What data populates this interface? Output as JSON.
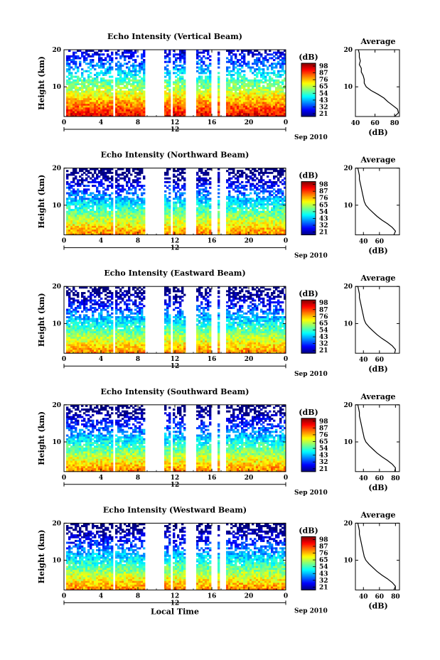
{
  "chart_data": [
    {
      "type": "heatmap",
      "title": "Echo Intensity (Vertical Beam)",
      "ylabel": "Height (km)",
      "ylim": [
        2,
        20
      ],
      "xlim": [
        0,
        24
      ],
      "x_ticks": [
        "0",
        "4",
        "8",
        "12",
        "16",
        "20",
        "0"
      ],
      "y_ticks": [
        "20",
        "10"
      ],
      "date_marker": "12",
      "date_label": "Sep 2010",
      "colorbar": {
        "unit": "(dB)",
        "ticks": [
          "98",
          "87",
          "76",
          "65",
          "54",
          "43",
          "32",
          "21"
        ]
      },
      "data_gaps_hours": [
        [
          0.0,
          0.3
        ],
        [
          5.3,
          5.5
        ],
        [
          8.8,
          10.8
        ],
        [
          11.6,
          11.8
        ],
        [
          13.2,
          14.2
        ],
        [
          15.9,
          16.6
        ],
        [
          16.9,
          17.5
        ]
      ],
      "average_profile": {
        "title": "Average",
        "xlabel": "(dB)",
        "xlim": [
          40,
          85
        ],
        "x_ticks": [
          "40",
          "60",
          "80"
        ],
        "y_ticks": [
          "20",
          "10"
        ],
        "ylim": [
          2,
          20
        ],
        "profile": [
          [
            2,
            80
          ],
          [
            3,
            84
          ],
          [
            4,
            83
          ],
          [
            5,
            78
          ],
          [
            6,
            73
          ],
          [
            7,
            69
          ],
          [
            8,
            63
          ],
          [
            9,
            56
          ],
          [
            10,
            51
          ],
          [
            11,
            49
          ],
          [
            12,
            49
          ],
          [
            13,
            48
          ],
          [
            14,
            46
          ],
          [
            15,
            46
          ],
          [
            16,
            44
          ],
          [
            17,
            45
          ],
          [
            18,
            44
          ],
          [
            19,
            44
          ],
          [
            20,
            43
          ]
        ]
      }
    },
    {
      "type": "heatmap",
      "title": "Echo Intensity (Northward Beam)",
      "ylabel": "Height (km)",
      "ylim": [
        2,
        20
      ],
      "xlim": [
        0,
        24
      ],
      "x_ticks": [
        "0",
        "4",
        "8",
        "12",
        "16",
        "20",
        "0"
      ],
      "y_ticks": [
        "20",
        "10"
      ],
      "date_marker": "12",
      "date_label": "Sep 2010",
      "colorbar": {
        "unit": "(dB)",
        "ticks": [
          "98",
          "87",
          "76",
          "65",
          "54",
          "43",
          "32",
          "21"
        ]
      },
      "data_gaps_hours": [
        [
          0.0,
          0.3
        ],
        [
          5.3,
          5.5
        ],
        [
          8.8,
          10.8
        ],
        [
          11.6,
          11.8
        ],
        [
          13.2,
          14.2
        ],
        [
          15.9,
          16.6
        ],
        [
          16.9,
          17.5
        ]
      ],
      "average_profile": {
        "title": "Average",
        "xlabel": "(dB)",
        "xlim": [
          30,
          85
        ],
        "x_ticks": [
          "40",
          "60"
        ],
        "y_ticks": [
          "20",
          "10"
        ],
        "ylim": [
          2,
          20
        ],
        "profile": [
          [
            2,
            78
          ],
          [
            3,
            80
          ],
          [
            4,
            76
          ],
          [
            5,
            70
          ],
          [
            6,
            63
          ],
          [
            7,
            57
          ],
          [
            8,
            52
          ],
          [
            9,
            47
          ],
          [
            10,
            43
          ],
          [
            11,
            41
          ],
          [
            12,
            40
          ],
          [
            13,
            39
          ],
          [
            14,
            38
          ],
          [
            15,
            37
          ],
          [
            16,
            36
          ],
          [
            17,
            35
          ],
          [
            18,
            35
          ],
          [
            19,
            34
          ],
          [
            20,
            33
          ]
        ]
      }
    },
    {
      "type": "heatmap",
      "title": "Echo Intensity (Eastward Beam)",
      "ylabel": "Height (km)",
      "ylim": [
        2,
        20
      ],
      "xlim": [
        0,
        24
      ],
      "x_ticks": [
        "0",
        "4",
        "8",
        "12",
        "16",
        "20",
        "0"
      ],
      "y_ticks": [
        "20",
        "10"
      ],
      "date_marker": "12",
      "date_label": "Sep 2010",
      "colorbar": {
        "unit": "(dB)",
        "ticks": [
          "98",
          "87",
          "76",
          "65",
          "54",
          "43",
          "32",
          "21"
        ]
      },
      "data_gaps_hours": [
        [
          0.0,
          0.3
        ],
        [
          5.3,
          5.5
        ],
        [
          8.8,
          10.8
        ],
        [
          11.6,
          11.8
        ],
        [
          13.2,
          14.2
        ],
        [
          15.9,
          16.6
        ],
        [
          16.9,
          17.5
        ]
      ],
      "average_profile": {
        "title": "Average",
        "xlabel": "(dB)",
        "xlim": [
          30,
          85
        ],
        "x_ticks": [
          "40",
          "60"
        ],
        "y_ticks": [
          "20",
          "10"
        ],
        "ylim": [
          2,
          20
        ],
        "profile": [
          [
            2,
            79
          ],
          [
            3,
            80
          ],
          [
            4,
            76
          ],
          [
            5,
            70
          ],
          [
            6,
            63
          ],
          [
            7,
            57
          ],
          [
            8,
            52
          ],
          [
            9,
            47
          ],
          [
            10,
            43
          ],
          [
            11,
            41
          ],
          [
            12,
            40
          ],
          [
            13,
            39
          ],
          [
            14,
            38
          ],
          [
            15,
            37
          ],
          [
            16,
            36
          ],
          [
            17,
            35
          ],
          [
            18,
            35
          ],
          [
            19,
            34
          ],
          [
            20,
            33
          ]
        ]
      }
    },
    {
      "type": "heatmap",
      "title": "Echo Intensity (Southward Beam)",
      "ylabel": "Height (km)",
      "ylim": [
        2,
        20
      ],
      "xlim": [
        0,
        24
      ],
      "x_ticks": [
        "0",
        "4",
        "8",
        "12",
        "16",
        "20",
        "0"
      ],
      "y_ticks": [
        "20",
        "10"
      ],
      "date_marker": "12",
      "date_label": "Sep 2010",
      "colorbar": {
        "unit": "(dB)",
        "ticks": [
          "98",
          "87",
          "76",
          "65",
          "54",
          "43",
          "32",
          "21"
        ]
      },
      "data_gaps_hours": [
        [
          0.0,
          0.3
        ],
        [
          5.3,
          5.5
        ],
        [
          8.8,
          10.8
        ],
        [
          11.6,
          11.8
        ],
        [
          13.2,
          14.2
        ],
        [
          15.9,
          16.6
        ],
        [
          16.9,
          17.5
        ]
      ],
      "average_profile": {
        "title": "Average",
        "xlabel": "(dB)",
        "xlim": [
          30,
          85
        ],
        "x_ticks": [
          "40",
          "60",
          "80"
        ],
        "y_ticks": [
          "20",
          "10"
        ],
        "ylim": [
          2,
          20
        ],
        "profile": [
          [
            2,
            79
          ],
          [
            3,
            80
          ],
          [
            4,
            76
          ],
          [
            5,
            70
          ],
          [
            6,
            63
          ],
          [
            7,
            57
          ],
          [
            8,
            52
          ],
          [
            9,
            47
          ],
          [
            10,
            43
          ],
          [
            11,
            41
          ],
          [
            12,
            40
          ],
          [
            13,
            39
          ],
          [
            14,
            38
          ],
          [
            15,
            37
          ],
          [
            16,
            36
          ],
          [
            17,
            35
          ],
          [
            18,
            35
          ],
          [
            19,
            34
          ],
          [
            20,
            33
          ]
        ]
      }
    },
    {
      "type": "heatmap",
      "title": "Echo Intensity (Westward Beam)",
      "ylabel": "Height (km)",
      "xlabel": "Local Time",
      "ylim": [
        2,
        20
      ],
      "xlim": [
        0,
        24
      ],
      "x_ticks": [
        "0",
        "4",
        "8",
        "12",
        "16",
        "20",
        "0"
      ],
      "y_ticks": [
        "20",
        "10"
      ],
      "date_marker": "12",
      "date_label": "Sep 2010",
      "colorbar": {
        "unit": "(dB)",
        "ticks": [
          "98",
          "87",
          "76",
          "65",
          "54",
          "43",
          "32",
          "21"
        ]
      },
      "data_gaps_hours": [
        [
          0.0,
          0.3
        ],
        [
          5.3,
          5.5
        ],
        [
          8.8,
          10.8
        ],
        [
          11.6,
          11.8
        ],
        [
          13.2,
          14.2
        ],
        [
          15.9,
          16.6
        ],
        [
          16.9,
          17.5
        ]
      ],
      "average_profile": {
        "title": "Average",
        "xlabel": "(dB)",
        "xlim": [
          30,
          85
        ],
        "x_ticks": [
          "40",
          "60",
          "80"
        ],
        "y_ticks": [
          "20",
          "10"
        ],
        "ylim": [
          2,
          20
        ],
        "profile": [
          [
            2,
            78
          ],
          [
            3,
            80
          ],
          [
            4,
            76
          ],
          [
            5,
            70
          ],
          [
            6,
            63
          ],
          [
            7,
            57
          ],
          [
            8,
            52
          ],
          [
            9,
            47
          ],
          [
            10,
            43
          ],
          [
            11,
            41
          ],
          [
            12,
            40
          ],
          [
            13,
            39
          ],
          [
            14,
            38
          ],
          [
            15,
            37
          ],
          [
            16,
            36
          ],
          [
            17,
            35
          ],
          [
            18,
            35
          ],
          [
            19,
            34
          ],
          [
            20,
            33
          ]
        ]
      }
    }
  ]
}
